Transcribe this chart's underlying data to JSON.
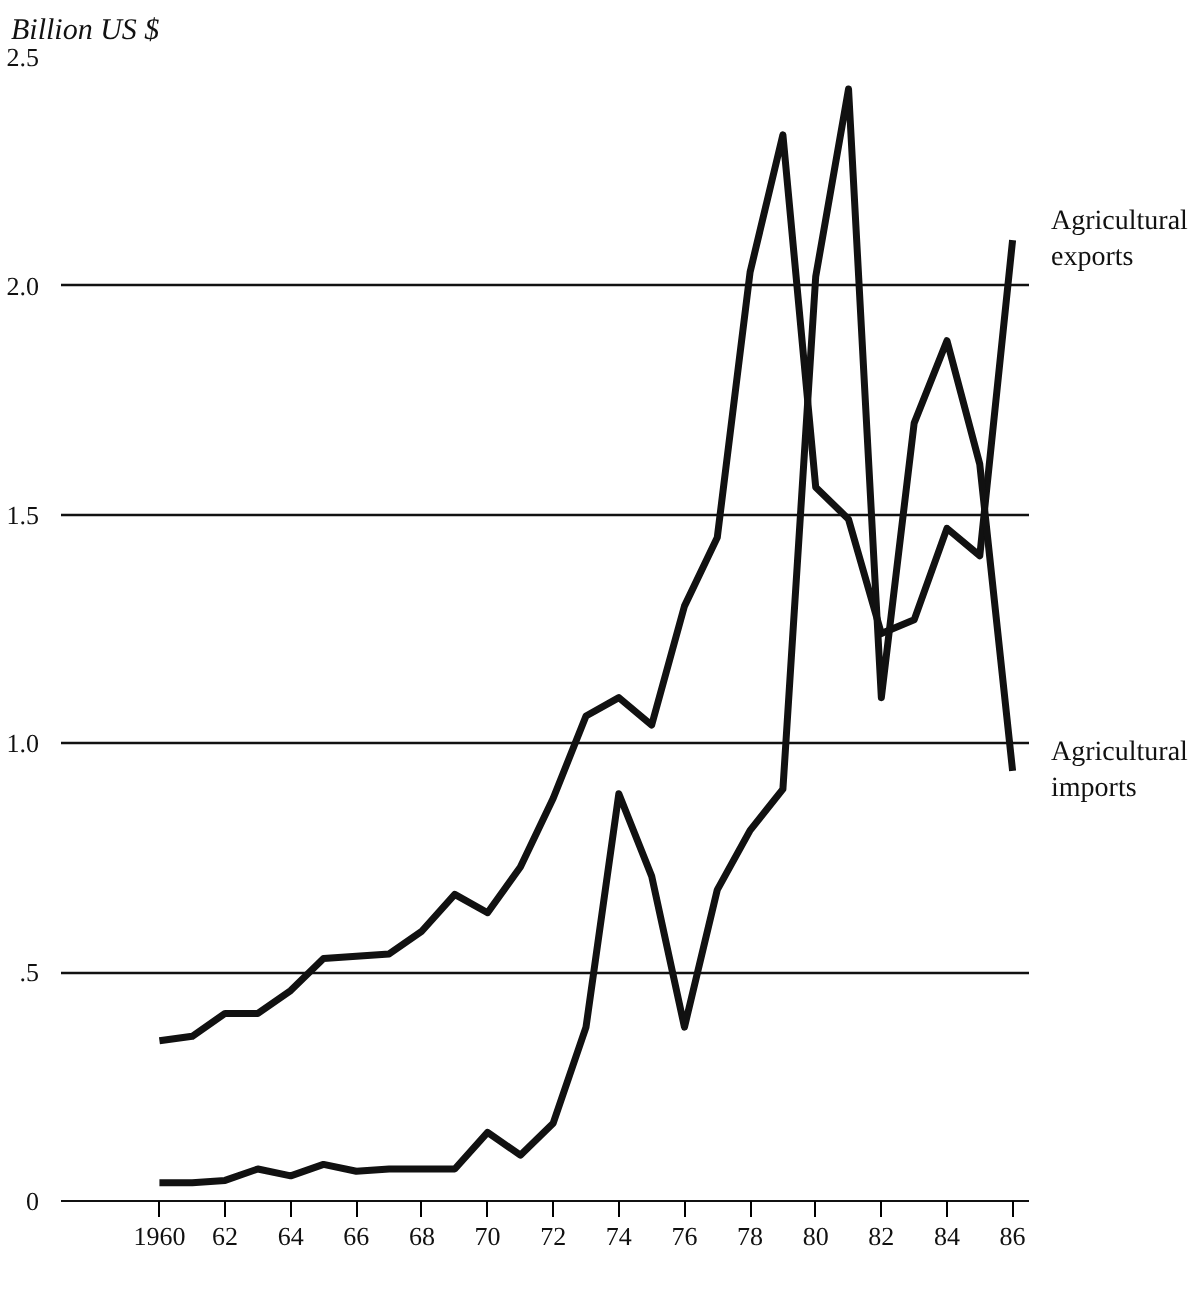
{
  "chart_data": {
    "type": "line",
    "ylabel": "Billion US $",
    "x": [
      1960,
      1961,
      1962,
      1963,
      1964,
      1965,
      1966,
      1967,
      1968,
      1969,
      1970,
      1971,
      1972,
      1973,
      1974,
      1975,
      1976,
      1977,
      1978,
      1979,
      1980,
      1981,
      1982,
      1983,
      1984,
      1985,
      1986
    ],
    "series": [
      {
        "name": "Agricultural exports",
        "color": "#111111",
        "values": [
          0.35,
          0.36,
          0.41,
          0.41,
          0.46,
          0.53,
          0.535,
          0.54,
          0.59,
          0.67,
          0.63,
          0.73,
          0.88,
          1.06,
          1.1,
          1.04,
          1.3,
          1.45,
          2.03,
          2.33,
          1.56,
          1.49,
          1.24,
          1.27,
          1.47,
          1.41,
          2.1
        ]
      },
      {
        "name": "Agricultural imports",
        "color": "#111111",
        "values": [
          0.04,
          0.04,
          0.045,
          0.07,
          0.055,
          0.08,
          0.065,
          0.07,
          0.07,
          0.07,
          0.15,
          0.1,
          0.17,
          0.38,
          0.89,
          0.71,
          0.38,
          0.68,
          0.81,
          0.9,
          2.02,
          2.43,
          1.1,
          1.7,
          1.88,
          1.61,
          0.94
        ]
      }
    ],
    "xlim": [
      1957,
      1986.5
    ],
    "ylim": [
      0,
      2.5
    ],
    "xticks": [
      {
        "value": 1960,
        "label": "1960"
      },
      {
        "value": 1962,
        "label": "62"
      },
      {
        "value": 1964,
        "label": "64"
      },
      {
        "value": 1966,
        "label": "66"
      },
      {
        "value": 1968,
        "label": "68"
      },
      {
        "value": 1970,
        "label": "70"
      },
      {
        "value": 1972,
        "label": "72"
      },
      {
        "value": 1974,
        "label": "74"
      },
      {
        "value": 1976,
        "label": "76"
      },
      {
        "value": 1978,
        "label": "78"
      },
      {
        "value": 1980,
        "label": "80"
      },
      {
        "value": 1982,
        "label": "82"
      },
      {
        "value": 1984,
        "label": "84"
      },
      {
        "value": 1986,
        "label": "86"
      }
    ],
    "yticks": [
      0,
      {
        "value": 0.5,
        "label": ".5"
      },
      {
        "value": 1,
        "label": "1.0"
      },
      1.5,
      {
        "value": 2,
        "label": "2.0"
      },
      2.5
    ],
    "grid": "y",
    "legend": false,
    "line_style": "solid",
    "marker": "none"
  }
}
